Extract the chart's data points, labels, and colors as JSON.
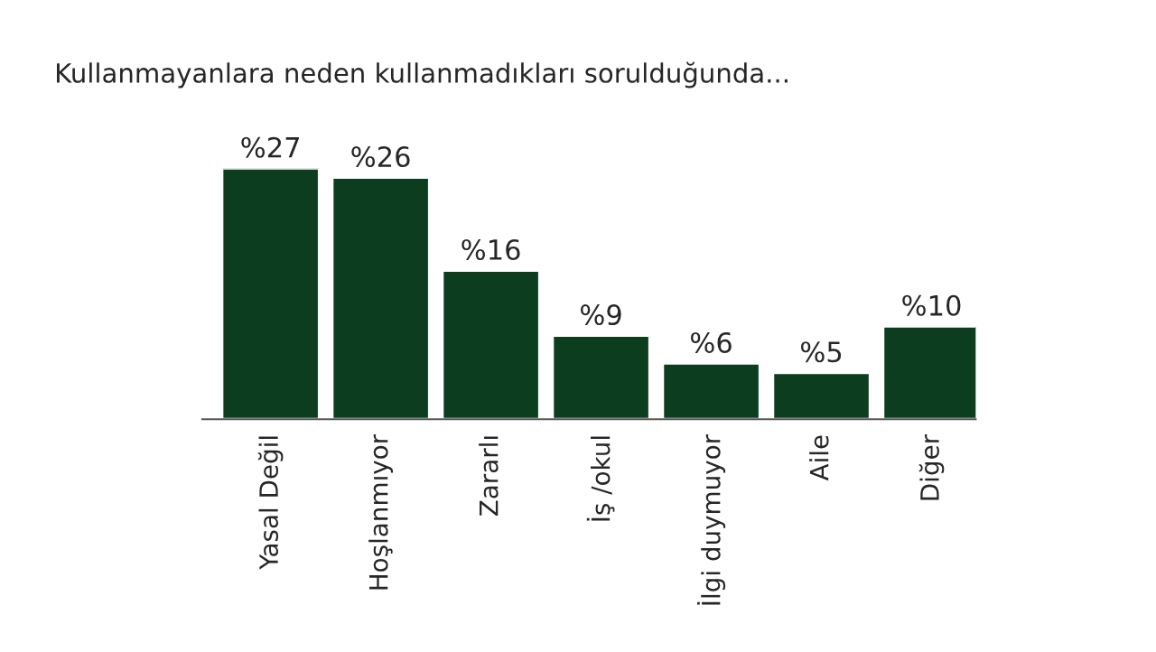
{
  "chart_data": {
    "type": "bar",
    "title": "Kullanmayanlara neden kullanmadıkları sorulduğunda...",
    "categories": [
      "Yasal Değil",
      "Hoşlanmıyor",
      "Zararlı",
      "İş /okul",
      "İlgi duymuyor",
      "Aile",
      "Diğer"
    ],
    "values": [
      27,
      26,
      16,
      9,
      6,
      5,
      10
    ],
    "value_labels": [
      "%27",
      "%26",
      "%16",
      "%9",
      "%6",
      "%5",
      "%10"
    ],
    "color": "#0d3d1f",
    "grid": false,
    "legend": false
  }
}
